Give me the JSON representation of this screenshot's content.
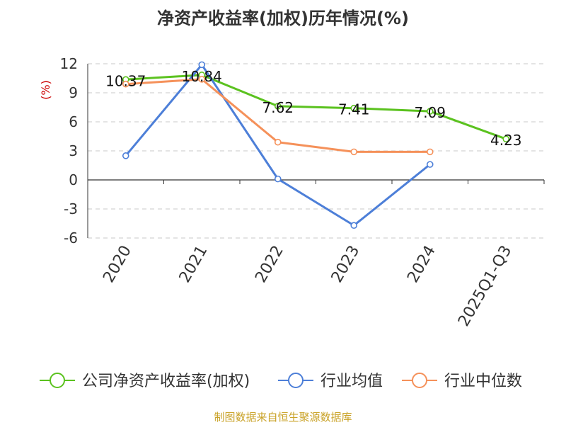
{
  "chart_data": {
    "type": "line",
    "title": "净资产收益率(加权)历年情况(%)",
    "ylabel": "(%)",
    "categories": [
      "2020",
      "2021",
      "2022",
      "2023",
      "2024",
      "2025Q1-Q3"
    ],
    "ylim": [
      -6,
      12
    ],
    "yticks": [
      12,
      9,
      6,
      3,
      0,
      -3,
      -6
    ],
    "grid": true,
    "legend_position": "bottom",
    "series": [
      {
        "name": "公司净资产收益率(加权)",
        "color": "#5bc21f",
        "values": [
          10.37,
          10.84,
          7.62,
          7.41,
          7.09,
          4.23
        ],
        "labels": [
          "10.37",
          "10.84",
          "7.62",
          "7.41",
          "7.09",
          "4.23"
        ]
      },
      {
        "name": "行业均值",
        "color": "#4d7fd8",
        "values": [
          2.5,
          11.9,
          0.1,
          -4.7,
          1.6,
          null
        ]
      },
      {
        "name": "行业中位数",
        "color": "#f5915a",
        "values": [
          9.9,
          10.4,
          3.9,
          2.9,
          2.9,
          null
        ]
      }
    ]
  },
  "source": "制图数据来自恒生聚源数据库"
}
